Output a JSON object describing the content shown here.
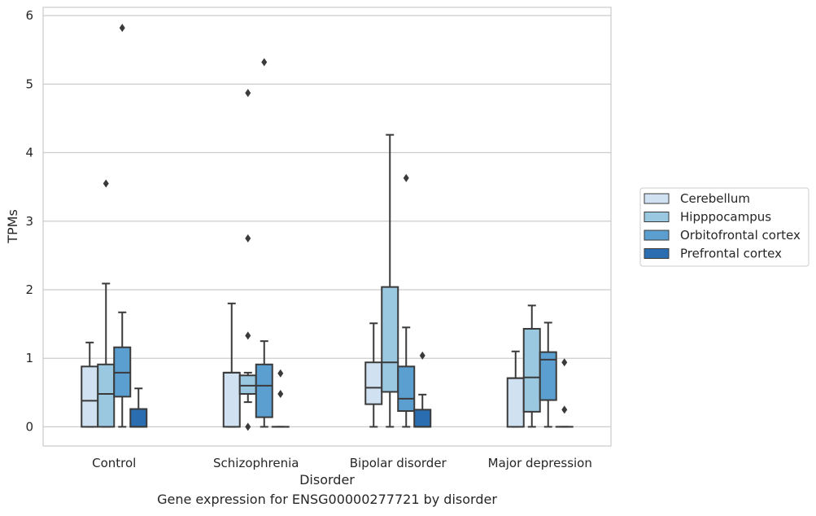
{
  "chart_data": {
    "type": "box",
    "xlabel": "Disorder",
    "ylabel": "TPMs",
    "ylim": [
      -0.28,
      6.12
    ],
    "yticks": [
      0,
      1,
      2,
      3,
      4,
      5,
      6
    ],
    "grid": true,
    "legend_position": "right",
    "categories": [
      "Control",
      "Schizophrenia",
      "Bipolar disorder",
      "Major depression"
    ],
    "series": [
      {
        "name": "Cerebellum",
        "color": "#d0e1f2",
        "boxes": [
          {
            "min": 0,
            "q1": 0,
            "median": 0.38,
            "q3": 0.88,
            "max": 1.23,
            "outliers": []
          },
          {
            "min": 0,
            "q1": 0,
            "median": 0.79,
            "q3": 0.79,
            "max": 1.8,
            "outliers": []
          },
          {
            "min": 0,
            "q1": 0.33,
            "median": 0.57,
            "q3": 0.94,
            "max": 1.51,
            "outliers": []
          },
          {
            "min": 0,
            "q1": 0,
            "median": 0.71,
            "q3": 0.71,
            "max": 1.1,
            "outliers": []
          }
        ]
      },
      {
        "name": "Hipppocampus",
        "color": "#9ac8e0",
        "boxes": [
          {
            "min": 0,
            "q1": 0,
            "median": 0.48,
            "q3": 0.91,
            "max": 2.09,
            "outliers": [
              3.55
            ]
          },
          {
            "min": 0.36,
            "q1": 0.48,
            "median": 0.6,
            "q3": 0.75,
            "max": 0.79,
            "outliers": [
              4.87,
              2.75,
              1.33,
              0.0
            ]
          },
          {
            "min": 0,
            "q1": 0.51,
            "median": 0.94,
            "q3": 2.04,
            "max": 4.26,
            "outliers": []
          },
          {
            "min": 0,
            "q1": 0.22,
            "median": 0.72,
            "q3": 1.43,
            "max": 1.77,
            "outliers": []
          }
        ]
      },
      {
        "name": "Orbitofrontal cortex",
        "color": "#5a9fcf",
        "boxes": [
          {
            "min": 0,
            "q1": 0.44,
            "median": 0.79,
            "q3": 1.16,
            "max": 1.67,
            "outliers": [
              5.82
            ]
          },
          {
            "min": 0,
            "q1": 0.14,
            "median": 0.6,
            "q3": 0.91,
            "max": 1.25,
            "outliers": [
              5.32
            ]
          },
          {
            "min": 0,
            "q1": 0.23,
            "median": 0.41,
            "q3": 0.88,
            "max": 1.45,
            "outliers": [
              3.63
            ]
          },
          {
            "min": 0,
            "q1": 0.39,
            "median": 0.98,
            "q3": 1.09,
            "max": 1.52,
            "outliers": []
          }
        ]
      },
      {
        "name": "Prefrontal cortex",
        "color": "#2a6db1",
        "boxes": [
          {
            "min": 0,
            "q1": 0,
            "median": 0,
            "q3": 0.26,
            "max": 0.56,
            "outliers": []
          },
          {
            "min": 0,
            "q1": 0,
            "median": 0,
            "q3": 0,
            "max": 0,
            "outliers": [
              0.78,
              0.48
            ]
          },
          {
            "min": 0,
            "q1": 0,
            "median": 0,
            "q3": 0.25,
            "max": 0.47,
            "outliers": [
              1.04
            ]
          },
          {
            "min": 0,
            "q1": 0,
            "median": 0,
            "q3": 0,
            "max": 0,
            "outliers": [
              0.94,
              0.25
            ]
          }
        ]
      }
    ]
  },
  "caption": "Gene expression for ENSG00000277721 by disorder"
}
